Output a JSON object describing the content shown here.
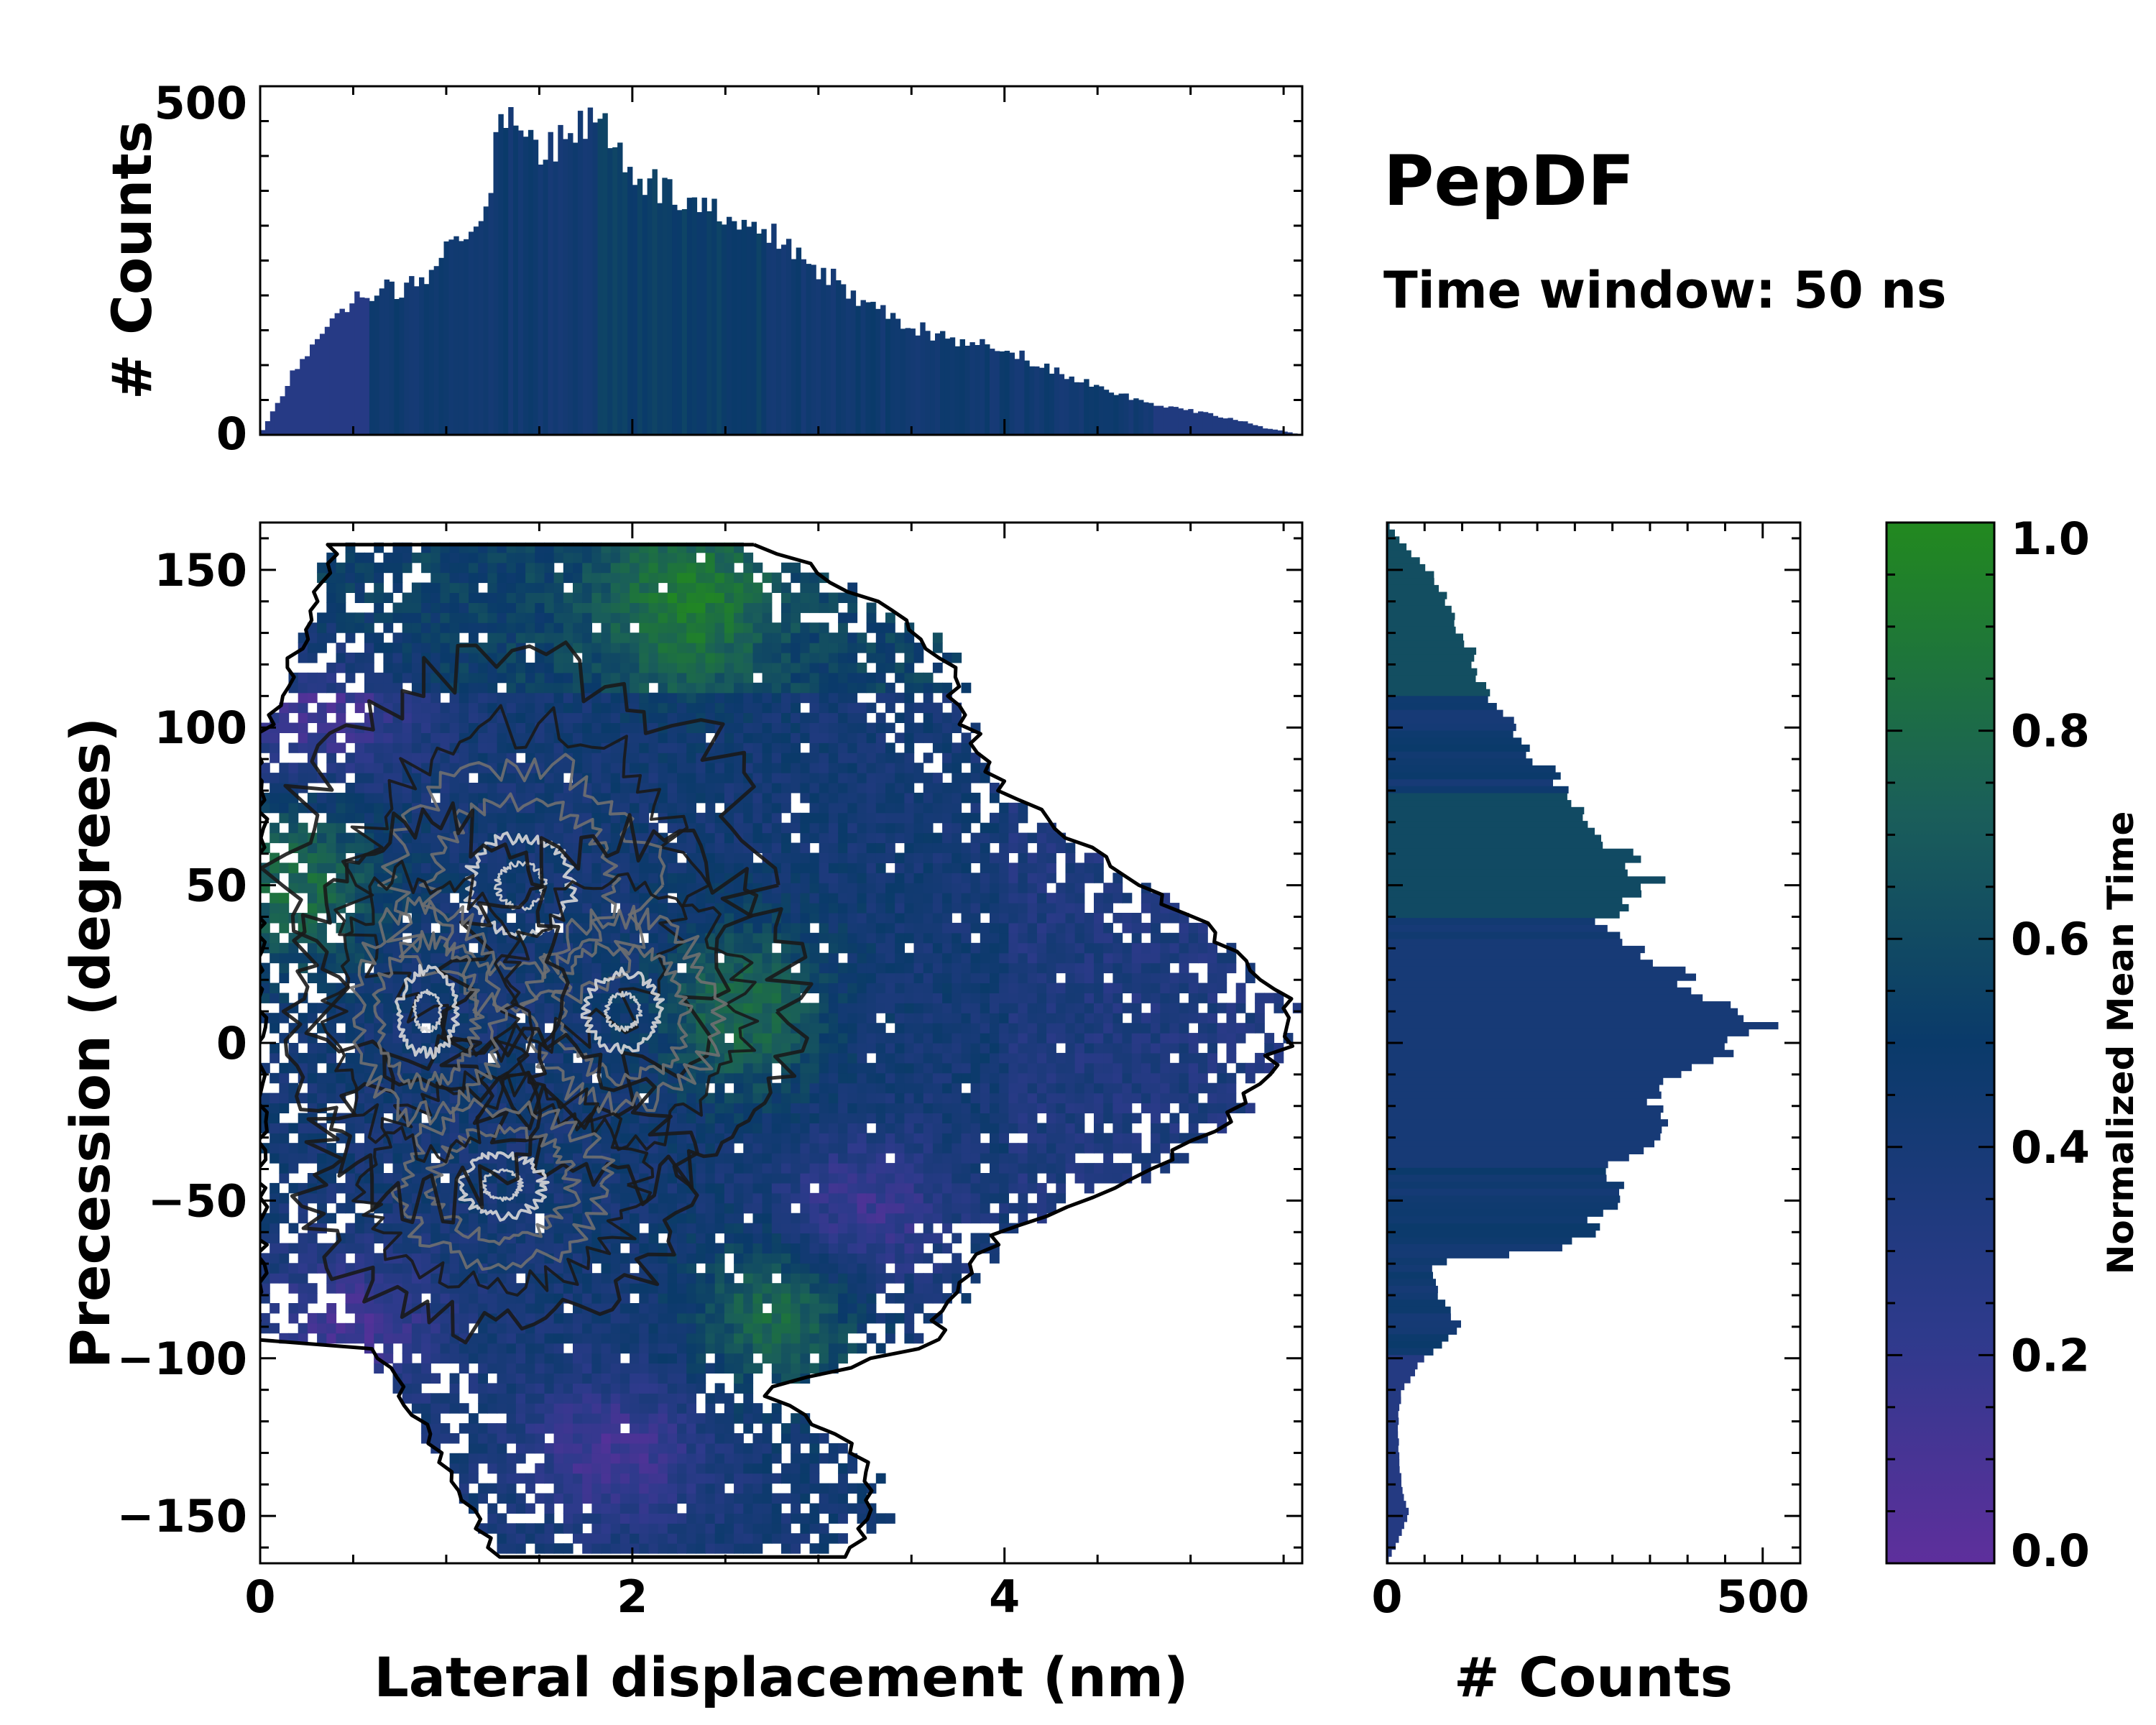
{
  "figure": {
    "title": "PepDF",
    "subtitle": "Time window: 50 ns"
  },
  "colors": {
    "cmap_low": "#5e2f9c",
    "cmap_mid": "#0a3a6a",
    "cmap_high": "#22891f",
    "contour_dark": "#1a1a1a",
    "contour_mid": "#707070",
    "contour_light": "#d8d8d8"
  },
  "chart_data": [
    {
      "id": "main",
      "type": "heatmap",
      "xlabel": "Lateral displacement (nm)",
      "ylabel": "Precession (degrees)",
      "xlim": [
        0,
        5.6
      ],
      "ylim": [
        -165,
        165
      ],
      "xticks": [
        0,
        2,
        4
      ],
      "xtick_labels": [
        "0",
        "2",
        "4"
      ],
      "yticks": [
        -150,
        -100,
        -50,
        0,
        50,
        100,
        150
      ],
      "ytick_labels": [
        "−150",
        "−100",
        "−50",
        "0",
        "50",
        "100",
        "150"
      ],
      "contour_centers": [
        {
          "x": 1.4,
          "y": 50
        },
        {
          "x": 1.95,
          "y": 10
        },
        {
          "x": 1.3,
          "y": -45
        },
        {
          "x": 0.9,
          "y": 10
        }
      ],
      "green_regions": [
        {
          "x": 0.2,
          "y": 50
        },
        {
          "x": 2.3,
          "y": 140
        },
        {
          "x": 2.8,
          "y": -85
        },
        {
          "x": 2.6,
          "y": 10
        }
      ],
      "purple_regions": [
        {
          "x": 0.35,
          "y": 105
        },
        {
          "x": 0.5,
          "y": -90
        },
        {
          "x": 1.9,
          "y": -130
        },
        {
          "x": 3.2,
          "y": -55
        }
      ]
    },
    {
      "id": "top-hist",
      "type": "bar",
      "ylabel": "# Counts",
      "xlim": [
        0,
        5.6
      ],
      "ylim": [
        0,
        500
      ],
      "yticks": [
        0,
        500
      ],
      "ytick_labels": [
        "0",
        "500"
      ],
      "x": [
        0.0,
        0.2,
        0.4,
        0.6,
        0.8,
        1.0,
        1.2,
        1.3,
        1.4,
        1.5,
        1.6,
        1.7,
        1.8,
        1.9,
        2.0,
        2.2,
        2.4,
        2.6,
        2.8,
        3.0,
        3.2,
        3.4,
        3.6,
        3.8,
        4.0,
        4.2,
        4.4,
        4.6,
        4.8,
        5.0,
        5.2,
        5.4,
        5.6
      ],
      "values": [
        0,
        100,
        180,
        205,
        210,
        260,
        330,
        440,
        455,
        420,
        415,
        440,
        455,
        435,
        380,
        345,
        320,
        290,
        280,
        240,
        195,
        170,
        145,
        130,
        125,
        100,
        80,
        60,
        45,
        35,
        25,
        10,
        0
      ]
    },
    {
      "id": "right-hist",
      "type": "bar",
      "orientation": "horizontal",
      "xlabel": "# Counts",
      "xlim": [
        0,
        550
      ],
      "ylim": [
        -165,
        165
      ],
      "xticks": [
        0,
        500
      ],
      "xtick_labels": [
        "0",
        "500"
      ],
      "y": [
        -165,
        -150,
        -140,
        -130,
        -120,
        -110,
        -100,
        -90,
        -80,
        -70,
        -65,
        -55,
        -50,
        -45,
        -40,
        -30,
        -20,
        -10,
        0,
        5,
        10,
        20,
        30,
        40,
        50,
        55,
        60,
        70,
        80,
        90,
        100,
        110,
        120,
        130,
        140,
        150,
        160,
        165
      ],
      "values": [
        0,
        30,
        20,
        15,
        15,
        20,
        50,
        95,
        70,
        55,
        240,
        290,
        320,
        300,
        300,
        350,
        350,
        390,
        480,
        500,
        450,
        390,
        330,
        290,
        350,
        340,
        310,
        260,
        235,
        200,
        165,
        135,
        120,
        100,
        80,
        55,
        15,
        0
      ]
    },
    {
      "id": "colorbar",
      "type": "colorbar",
      "label": "Normalized Mean Time",
      "range": [
        0.0,
        1.0
      ],
      "ticks": [
        0.0,
        0.2,
        0.4,
        0.6,
        0.8,
        1.0
      ],
      "tick_labels": [
        "0.0",
        "0.2",
        "0.4",
        "0.6",
        "0.8",
        "1.0"
      ]
    }
  ]
}
